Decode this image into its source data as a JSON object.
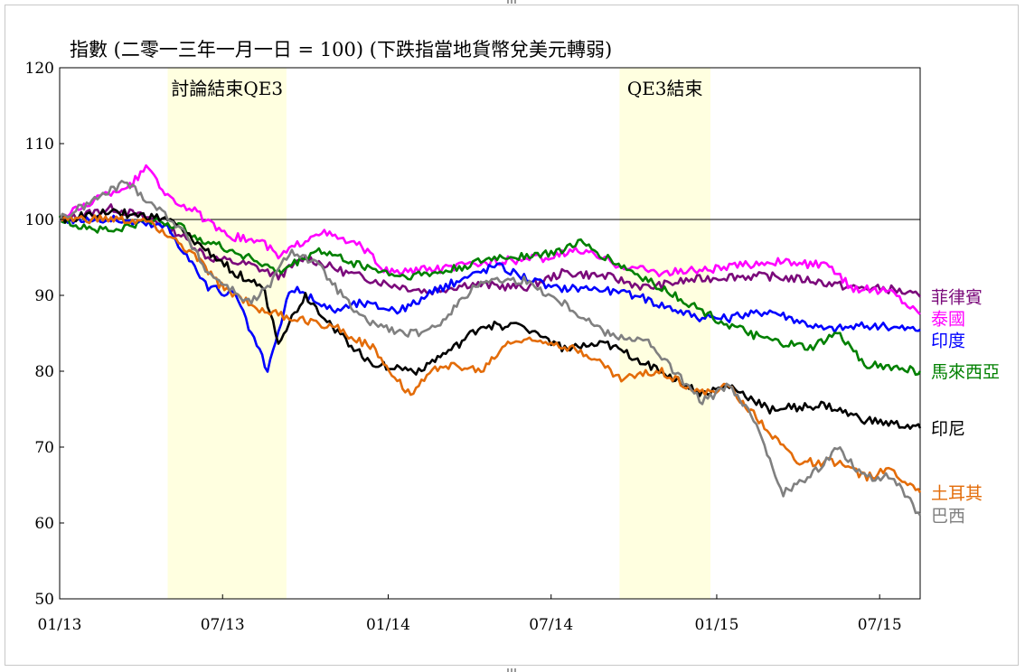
{
  "chart_data": {
    "type": "line",
    "title": "指數 (二零一三年一月一日 = 100) (下跌指當地貨幣兌美元轉弱)",
    "ylim": [
      50,
      120
    ],
    "yticks": [
      50,
      60,
      70,
      80,
      90,
      100,
      110,
      120
    ],
    "xlim": [
      "2013-01-01",
      "2015-08-15"
    ],
    "xticks": [
      {
        "date": "2013-01-01",
        "label": "01/13"
      },
      {
        "date": "2013-07-01",
        "label": "07/13"
      },
      {
        "date": "2014-01-01",
        "label": "01/14"
      },
      {
        "date": "2014-07-01",
        "label": "07/14"
      },
      {
        "date": "2015-01-01",
        "label": "01/15"
      },
      {
        "date": "2015-07-01",
        "label": "07/15"
      }
    ],
    "reference_line": 100,
    "shaded_periods": [
      {
        "start": "2013-05-01",
        "end": "2013-09-10",
        "label": "討論結束QE3",
        "color": "#ffffe0"
      },
      {
        "start": "2014-09-15",
        "end": "2014-12-25",
        "label": "QE3結束",
        "color": "#ffffe0"
      }
    ],
    "series": [
      {
        "name": "菲律賓",
        "color": "#7b0a7b",
        "points": [
          [
            "2013-01-01",
            100
          ],
          [
            "2013-03-01",
            101.5
          ],
          [
            "2013-04-15",
            100
          ],
          [
            "2013-05-15",
            98
          ],
          [
            "2013-06-15",
            95
          ],
          [
            "2013-08-01",
            94
          ],
          [
            "2013-09-01",
            92.5
          ],
          [
            "2013-10-01",
            95
          ],
          [
            "2013-11-15",
            93
          ],
          [
            "2014-01-01",
            91.5
          ],
          [
            "2014-02-15",
            90.5
          ],
          [
            "2014-04-01",
            91.5
          ],
          [
            "2014-06-01",
            91
          ],
          [
            "2014-07-15",
            93
          ],
          [
            "2014-09-01",
            92.5
          ],
          [
            "2014-10-15",
            91
          ],
          [
            "2014-12-01",
            92
          ],
          [
            "2015-01-15",
            92.5
          ],
          [
            "2015-03-01",
            92.5
          ],
          [
            "2015-04-15",
            92
          ],
          [
            "2015-06-01",
            91
          ],
          [
            "2015-07-15",
            90.8
          ],
          [
            "2015-08-15",
            89.8
          ]
        ]
      },
      {
        "name": "泰國",
        "color": "#ff00ff",
        "points": [
          [
            "2013-01-01",
            100
          ],
          [
            "2013-02-15",
            103
          ],
          [
            "2013-03-20",
            104.5
          ],
          [
            "2013-04-10",
            107
          ],
          [
            "2013-05-01",
            103
          ],
          [
            "2013-06-01",
            101
          ],
          [
            "2013-07-01",
            98
          ],
          [
            "2013-08-15",
            97
          ],
          [
            "2013-09-01",
            95
          ],
          [
            "2013-10-15",
            98.5
          ],
          [
            "2013-12-01",
            96.5
          ],
          [
            "2014-01-01",
            93
          ],
          [
            "2014-03-01",
            93.5
          ],
          [
            "2014-05-01",
            94.5
          ],
          [
            "2014-07-01",
            95
          ],
          [
            "2014-08-01",
            96
          ],
          [
            "2014-09-15",
            94
          ],
          [
            "2014-11-01",
            93
          ],
          [
            "2015-01-01",
            93.5
          ],
          [
            "2015-03-01",
            94.5
          ],
          [
            "2015-05-01",
            94
          ],
          [
            "2015-06-01",
            91
          ],
          [
            "2015-07-15",
            90.5
          ],
          [
            "2015-08-15",
            87.5
          ]
        ]
      },
      {
        "name": "印度",
        "color": "#0000ff",
        "points": [
          [
            "2013-01-01",
            100
          ],
          [
            "2013-03-01",
            100
          ],
          [
            "2013-05-01",
            99
          ],
          [
            "2013-06-15",
            91
          ],
          [
            "2013-07-15",
            90
          ],
          [
            "2013-08-20",
            80
          ],
          [
            "2013-09-15",
            91
          ],
          [
            "2013-11-01",
            88
          ],
          [
            "2013-12-01",
            89
          ],
          [
            "2014-01-15",
            88
          ],
          [
            "2014-03-01",
            91
          ],
          [
            "2014-05-01",
            94
          ],
          [
            "2014-07-01",
            91
          ],
          [
            "2014-08-15",
            91
          ],
          [
            "2014-10-01",
            90
          ],
          [
            "2014-12-15",
            87
          ],
          [
            "2015-01-15",
            87
          ],
          [
            "2015-03-01",
            88
          ],
          [
            "2015-05-01",
            85.5
          ],
          [
            "2015-06-15",
            86
          ],
          [
            "2015-08-15",
            85.5
          ]
        ]
      },
      {
        "name": "馬來西亞",
        "color": "#008000",
        "points": [
          [
            "2013-01-01",
            100
          ],
          [
            "2013-02-01",
            99
          ],
          [
            "2013-03-01",
            98.5
          ],
          [
            "2013-04-15",
            100
          ],
          [
            "2013-05-15",
            99
          ],
          [
            "2013-06-15",
            97
          ],
          [
            "2013-08-01",
            95
          ],
          [
            "2013-09-01",
            93
          ],
          [
            "2013-10-15",
            96
          ],
          [
            "2013-12-01",
            94
          ],
          [
            "2014-01-15",
            92.5
          ],
          [
            "2014-03-01",
            93
          ],
          [
            "2014-05-01",
            95
          ],
          [
            "2014-07-01",
            95.5
          ],
          [
            "2014-08-01",
            97
          ],
          [
            "2014-09-15",
            94
          ],
          [
            "2014-11-01",
            91
          ],
          [
            "2014-12-15",
            88
          ],
          [
            "2015-01-15",
            86
          ],
          [
            "2015-03-01",
            84
          ],
          [
            "2015-04-15",
            83
          ],
          [
            "2015-05-15",
            85
          ],
          [
            "2015-06-15",
            81
          ],
          [
            "2015-08-15",
            80
          ]
        ]
      },
      {
        "name": "印尼",
        "color": "#000000",
        "points": [
          [
            "2013-01-01",
            100
          ],
          [
            "2013-03-01",
            101
          ],
          [
            "2013-05-01",
            100
          ],
          [
            "2013-06-01",
            97
          ],
          [
            "2013-07-15",
            93
          ],
          [
            "2013-08-15",
            91
          ],
          [
            "2013-09-01",
            84
          ],
          [
            "2013-10-01",
            90
          ],
          [
            "2013-11-15",
            84
          ],
          [
            "2013-12-15",
            81
          ],
          [
            "2014-02-01",
            80
          ],
          [
            "2014-03-15",
            83
          ],
          [
            "2014-04-15",
            86
          ],
          [
            "2014-06-01",
            86
          ],
          [
            "2014-07-15",
            83
          ],
          [
            "2014-09-01",
            83.5
          ],
          [
            "2014-10-15",
            81
          ],
          [
            "2014-12-15",
            77
          ],
          [
            "2015-01-15",
            78
          ],
          [
            "2015-03-01",
            75
          ],
          [
            "2015-05-01",
            75.5
          ],
          [
            "2015-06-15",
            73.5
          ],
          [
            "2015-08-15",
            72.5
          ]
        ]
      },
      {
        "name": "土耳其",
        "color": "#e36c09",
        "points": [
          [
            "2013-01-01",
            100
          ],
          [
            "2013-03-01",
            100
          ],
          [
            "2013-04-15",
            99.5
          ],
          [
            "2013-06-01",
            95
          ],
          [
            "2013-07-01",
            91
          ],
          [
            "2013-08-15",
            88
          ],
          [
            "2013-09-15",
            87
          ],
          [
            "2013-11-01",
            86
          ],
          [
            "2013-12-15",
            83
          ],
          [
            "2014-01-25",
            77
          ],
          [
            "2014-03-01",
            81
          ],
          [
            "2014-04-15",
            80
          ],
          [
            "2014-05-15",
            84
          ],
          [
            "2014-07-01",
            84
          ],
          [
            "2014-08-15",
            82
          ],
          [
            "2014-09-15",
            79
          ],
          [
            "2014-11-01",
            80
          ],
          [
            "2014-12-15",
            77
          ],
          [
            "2015-01-15",
            78
          ],
          [
            "2015-03-01",
            72
          ],
          [
            "2015-04-01",
            68
          ],
          [
            "2015-05-15",
            68
          ],
          [
            "2015-06-15",
            66
          ],
          [
            "2015-07-15",
            67
          ],
          [
            "2015-08-15",
            64
          ]
        ]
      },
      {
        "name": "巴西",
        "color": "#808080",
        "points": [
          [
            "2013-01-01",
            100
          ],
          [
            "2013-02-15",
            103
          ],
          [
            "2013-03-15",
            105
          ],
          [
            "2013-04-15",
            102
          ],
          [
            "2013-05-15",
            99
          ],
          [
            "2013-06-15",
            93
          ],
          [
            "2013-08-01",
            89
          ],
          [
            "2013-08-20",
            91
          ],
          [
            "2013-09-15",
            96
          ],
          [
            "2013-10-15",
            94
          ],
          [
            "2013-12-01",
            87
          ],
          [
            "2014-01-15",
            85
          ],
          [
            "2014-02-15",
            85
          ],
          [
            "2014-04-15",
            92
          ],
          [
            "2014-06-01",
            92
          ],
          [
            "2014-07-15",
            89
          ],
          [
            "2014-09-01",
            85
          ],
          [
            "2014-10-15",
            84
          ],
          [
            "2014-11-15",
            80
          ],
          [
            "2014-12-15",
            76
          ],
          [
            "2015-01-15",
            78
          ],
          [
            "2015-02-15",
            73
          ],
          [
            "2015-03-15",
            64
          ],
          [
            "2015-04-15",
            66
          ],
          [
            "2015-05-15",
            70
          ],
          [
            "2015-06-15",
            66
          ],
          [
            "2015-07-15",
            66
          ],
          [
            "2015-08-15",
            61
          ]
        ]
      }
    ]
  }
}
